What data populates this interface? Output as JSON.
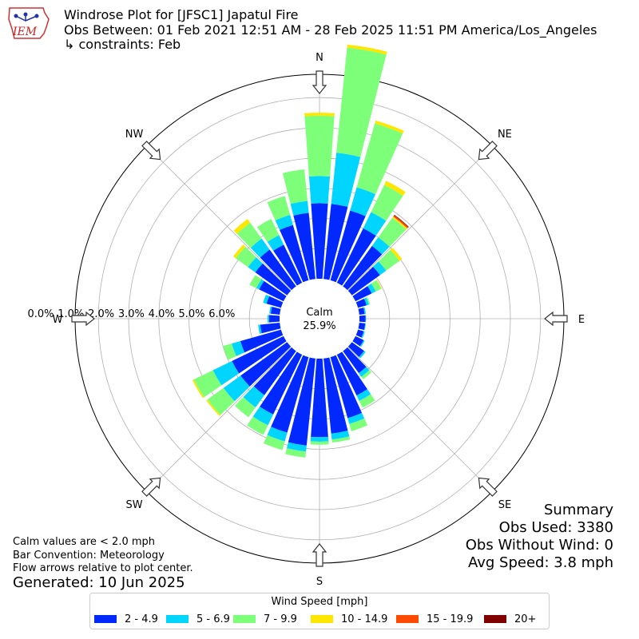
{
  "header": {
    "title": "Windrose Plot for [JFSC1] Japatul Fire",
    "subtitle": "Obs Between: 01 Feb 2021 12:51 AM - 28 Feb 2025 11:51 PM America/Los_Angeles",
    "constraints": "↳ constraints: Feb",
    "logo_text": "IEM"
  },
  "notes": {
    "calm_note": "Calm values are < 2.0 mph",
    "bar_convention": "Bar Convention: Meteorology",
    "flow_arrows": "Flow arrows relative to plot center.",
    "generated": "Generated: 10 Jun 2025"
  },
  "summary": {
    "title": "Summary",
    "obs_used": "Obs Used: 3380",
    "obs_without_wind": "Obs Without Wind: 0",
    "avg_speed": "Avg Speed: 3.8 mph"
  },
  "chart_data": {
    "type": "windrose",
    "calm_label": "Calm",
    "calm_value": "25.9%",
    "direction_labels": [
      "N",
      "NE",
      "E",
      "SE",
      "S",
      "SW",
      "W",
      "NW"
    ],
    "radial_ticks": [
      "0.0%",
      "1.0%",
      "2.0%",
      "3.0%",
      "4.0%",
      "5.0%",
      "6.0%"
    ],
    "legend_title": "Wind Speed [mph]",
    "bins": [
      {
        "label": "2 - 4.9",
        "color": "#0028ff"
      },
      {
        "label": "5 - 6.9",
        "color": "#00d5ff"
      },
      {
        "label": "7 - 9.9",
        "color": "#7dff7a"
      },
      {
        "label": "10 - 14.9",
        "color": "#ffe600"
      },
      {
        "label": "15 - 19.9",
        "color": "#ff4a00"
      },
      {
        "label": "20+",
        "color": "#800000"
      }
    ],
    "direction_degrees": [
      0,
      10,
      20,
      30,
      40,
      50,
      60,
      70,
      80,
      90,
      100,
      110,
      120,
      130,
      140,
      150,
      160,
      170,
      180,
      190,
      200,
      210,
      220,
      230,
      240,
      250,
      260,
      270,
      280,
      290,
      300,
      310,
      320,
      330,
      340,
      350
    ],
    "cumulative": [
      [
        2.5,
        3.4,
        5.4,
        5.5
      ],
      [
        2.5,
        4.2,
        7.7,
        7.8
      ],
      [
        2.4,
        3.2,
        5.4,
        5.5
      ],
      [
        2.0,
        2.6,
        3.6,
        3.75
      ],
      [
        1.65,
        2.0,
        2.8,
        2.85,
        2.9,
        2.92
      ],
      [
        1.15,
        1.4,
        1.95,
        2.05
      ],
      [
        0.6,
        0.75,
        0.95,
        0.97
      ],
      [
        0.3,
        0.38,
        0.42
      ],
      [
        0.18,
        0.22
      ],
      [
        0.2,
        0.22
      ],
      [
        0.2,
        0.22
      ],
      [
        0.2,
        0.24
      ],
      [
        0.3,
        0.34
      ],
      [
        0.5,
        0.56
      ],
      [
        0.9,
        1.05,
        1.15
      ],
      [
        1.5,
        1.7,
        1.95
      ],
      [
        2.1,
        2.3,
        2.55
      ],
      [
        2.5,
        2.7,
        2.8
      ],
      [
        2.6,
        2.75,
        2.85
      ],
      [
        2.9,
        3.1,
        3.3
      ],
      [
        2.6,
        2.9,
        3.2
      ],
      [
        2.2,
        2.6,
        2.95
      ],
      [
        1.8,
        2.3,
        2.7
      ],
      [
        1.9,
        2.6,
        3.25,
        3.3
      ],
      [
        1.9,
        2.6,
        3.3,
        3.35
      ],
      [
        1.4,
        1.7,
        2.0
      ],
      [
        0.65,
        0.72
      ],
      [
        0.35,
        0.4
      ],
      [
        0.3,
        0.35
      ],
      [
        0.5,
        0.62
      ],
      [
        0.9,
        1.0,
        1.25
      ],
      [
        1.3,
        1.6,
        2.1,
        2.2
      ],
      [
        1.5,
        1.95,
        2.6,
        2.75
      ],
      [
        1.4,
        1.75,
        2.35
      ],
      [
        1.9,
        2.25,
        2.9
      ],
      [
        2.2,
        2.6,
        3.65
      ]
    ],
    "bar_convention": "meteorology"
  }
}
